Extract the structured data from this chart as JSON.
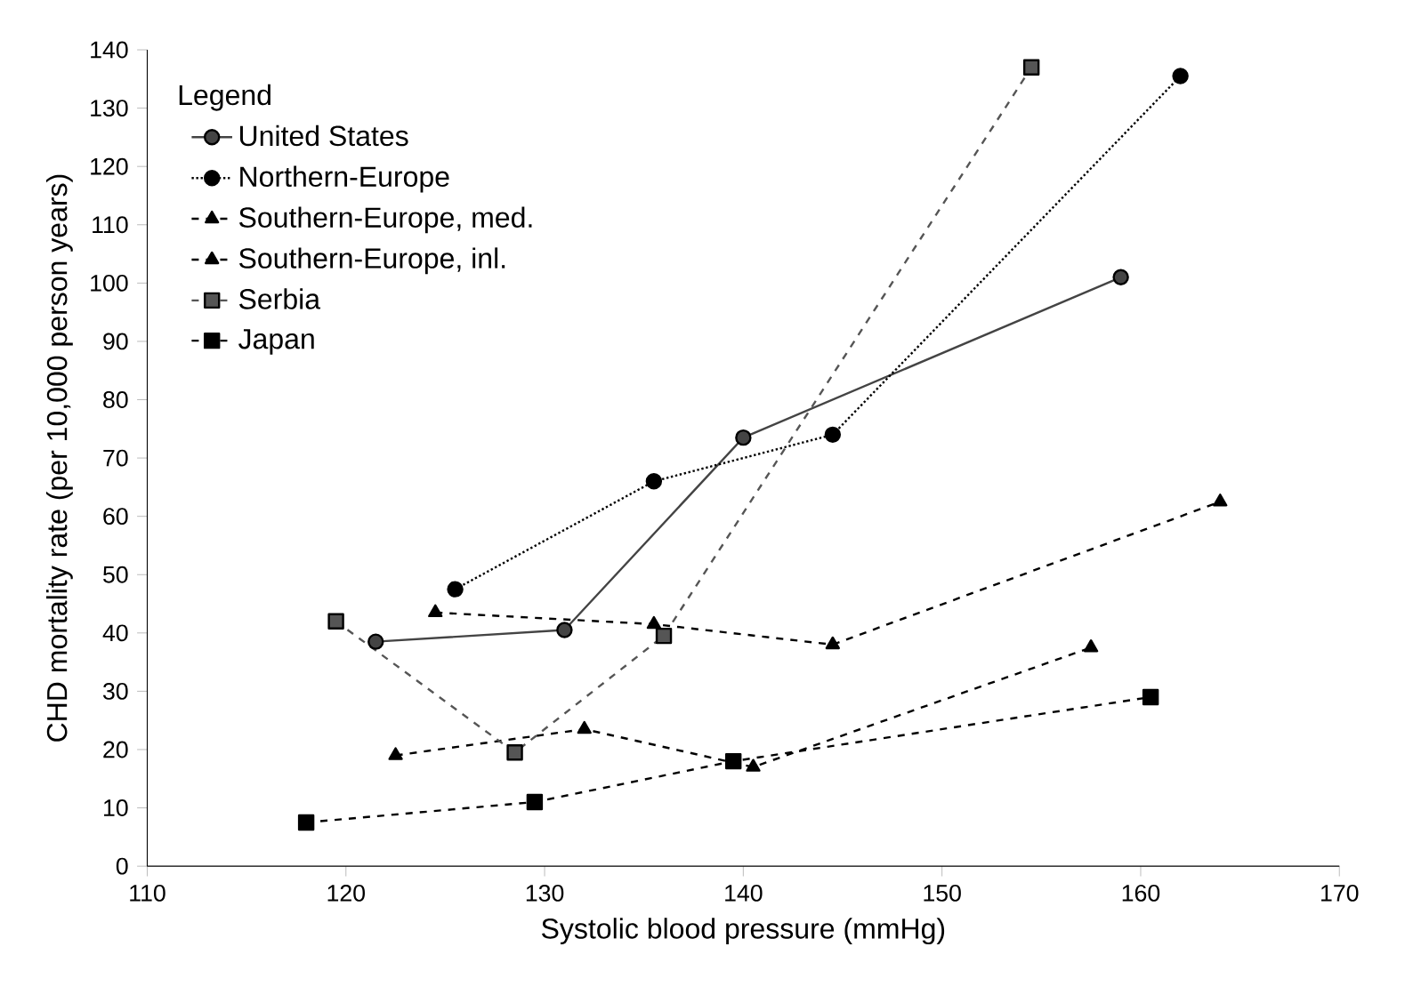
{
  "chart_data": {
    "type": "line",
    "xlabel": "Systolic blood pressure (mmHg)",
    "ylabel": "CHD mortality rate (per 10,000 person years)",
    "legend_title": "Legend",
    "legend": "top left",
    "grid": false,
    "xlim": [
      110,
      170
    ],
    "xticks": [
      110,
      120,
      130,
      140,
      150,
      160,
      170
    ],
    "ylim": [
      0,
      140
    ],
    "yticks": [
      0,
      10,
      20,
      30,
      40,
      50,
      60,
      70,
      80,
      90,
      100,
      110,
      120,
      130,
      140
    ],
    "series": [
      {
        "name": "United States",
        "color": "#444444",
        "marker": "circle",
        "line_style": "solid",
        "x": [
          121.5,
          131,
          140,
          159
        ],
        "values": [
          38.5,
          40.5,
          73.5,
          101
        ]
      },
      {
        "name": "Northern-Europe",
        "color": "#000000",
        "marker": "circle",
        "line_style": "dotted",
        "x": [
          125.5,
          135.5,
          144.5,
          162
        ],
        "values": [
          47.5,
          66,
          74,
          135.5
        ]
      },
      {
        "name": "Southern-Europe, med.",
        "color": "#000000",
        "marker": "triangle",
        "line_style": "dashed",
        "x": [
          122.5,
          132,
          140.5,
          157.5
        ],
        "values": [
          19,
          23.5,
          17,
          37.5
        ]
      },
      {
        "name": "Southern-Europe, inl.",
        "color": "#000000",
        "marker": "triangle",
        "line_style": "dashed",
        "x": [
          124.5,
          135.5,
          144.5,
          164
        ],
        "values": [
          43.5,
          41.5,
          38,
          62.5
        ]
      },
      {
        "name": "Serbia",
        "color": "#555555",
        "marker": "square",
        "line_style": "dashed",
        "x": [
          119.5,
          128.5,
          136,
          154.5
        ],
        "values": [
          42,
          19.5,
          39.5,
          137
        ]
      },
      {
        "name": "Japan",
        "color": "#000000",
        "marker": "square",
        "line_style": "dashed",
        "x": [
          118,
          129.5,
          139.5,
          160.5
        ],
        "values": [
          7.5,
          11,
          18,
          29
        ]
      }
    ]
  }
}
